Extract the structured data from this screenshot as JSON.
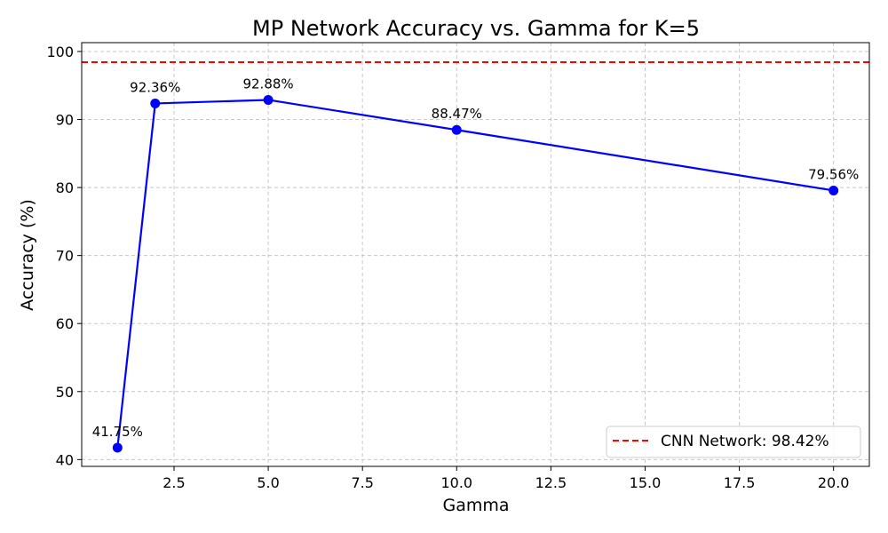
{
  "chart_data": {
    "type": "line",
    "title": "MP Network Accuracy vs. Gamma for K=5",
    "xlabel": "Gamma",
    "ylabel": "Accuracy (%)",
    "xlim": [
      0.05,
      20.95
    ],
    "ylim": [
      39,
      101.3
    ],
    "xticks": [
      2.5,
      5.0,
      7.5,
      10.0,
      12.5,
      15.0,
      17.5,
      20.0
    ],
    "xtick_labels": [
      "2.5",
      "5.0",
      "7.5",
      "10.0",
      "12.5",
      "15.0",
      "17.5",
      "20.0"
    ],
    "yticks": [
      40,
      50,
      60,
      70,
      80,
      90,
      100
    ],
    "ytick_labels": [
      "40",
      "50",
      "60",
      "70",
      "80",
      "90",
      "100"
    ],
    "grid": true,
    "series": [
      {
        "color": "#0000ff",
        "marker": "circle",
        "points": [
          {
            "x": 1,
            "y": 41.75,
            "label": "41.75%"
          },
          {
            "x": 2,
            "y": 92.36,
            "label": "92.36%"
          },
          {
            "x": 5,
            "y": 92.88,
            "label": "92.88%"
          },
          {
            "x": 10,
            "y": 88.47,
            "label": "88.47%"
          },
          {
            "x": 20,
            "y": 79.56,
            "label": "79.56%"
          }
        ]
      }
    ],
    "reference_line": {
      "name": "CNN Network: 98.42%",
      "y": 98.42,
      "color": "#ff0000",
      "style": "dashed"
    },
    "legend": {
      "placement": "lower-right",
      "entries": [
        "CNN Network: 98.42%"
      ]
    }
  }
}
